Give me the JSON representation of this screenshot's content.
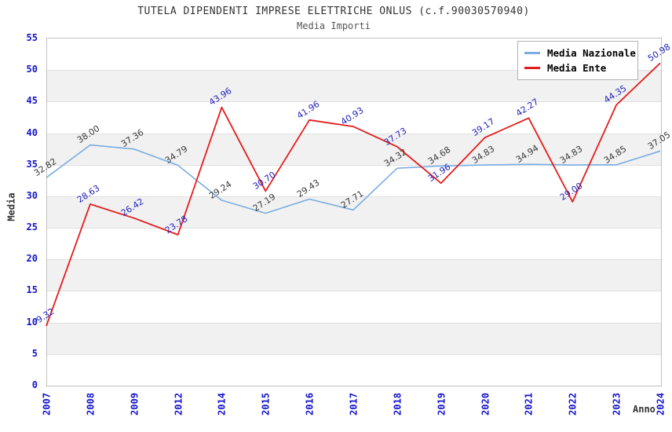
{
  "header": {
    "title": "TUTELA DIPENDENTI IMPRESE ELETTRICHE ONLUS (c.f.90030570940)",
    "subtitle": "Media Importi"
  },
  "chart_data": {
    "type": "line",
    "title": "TUTELA DIPENDENTI IMPRESE ELETTRICHE ONLUS (c.f.90030570940)",
    "subtitle": "Media Importi",
    "xlabel": "Anno",
    "ylabel": "Media",
    "ylim": [
      0,
      55
    ],
    "ytick_step": 5,
    "grid": "horizontal-bands",
    "legend_position": "top-right",
    "band_color": "#f1f1f1",
    "axis_tick_color": "#1414cc",
    "categories": [
      "2007",
      "2008",
      "2009",
      "2012",
      "2014",
      "2015",
      "2016",
      "2017",
      "2018",
      "2019",
      "2020",
      "2021",
      "2022",
      "2023",
      "2024"
    ],
    "series": [
      {
        "name": "Media Nazionale",
        "color": "#79ade2",
        "label_color": "#3a3a3a",
        "values": [
          32.82,
          38.0,
          37.36,
          34.79,
          29.24,
          27.19,
          29.43,
          27.71,
          34.32,
          34.68,
          34.83,
          34.94,
          34.83,
          34.85,
          37.05
        ]
      },
      {
        "name": "Media Ente",
        "color": "#e51c1c",
        "label_color": "#2323bc",
        "values": [
          9.32,
          28.63,
          26.42,
          23.78,
          43.96,
          30.7,
          41.96,
          40.93,
          37.73,
          31.96,
          39.17,
          42.27,
          29.0,
          44.35,
          50.98
        ]
      }
    ]
  }
}
